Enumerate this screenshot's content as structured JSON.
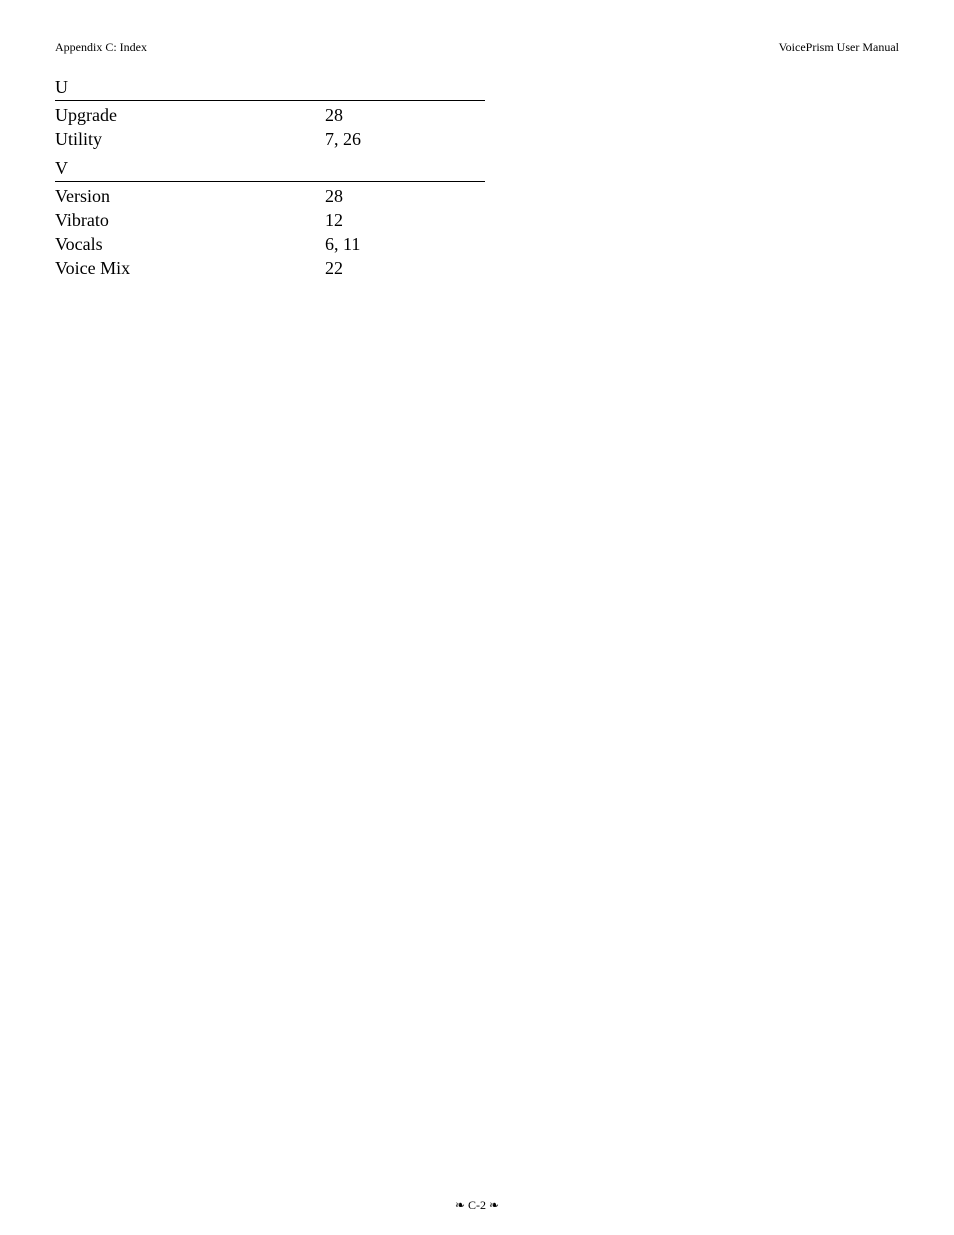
{
  "header": {
    "left": "Appendix C: Index",
    "right": "VoicePrism User Manual"
  },
  "sections": {
    "u": {
      "letter": "U",
      "upgrade": {
        "term": "Upgrade",
        "pages": "28"
      },
      "utility": {
        "term": "Utility",
        "pages": "7, 26"
      }
    },
    "v": {
      "letter": "V",
      "version": {
        "term": "Version",
        "pages": "28"
      },
      "vibrato": {
        "term": "Vibrato",
        "pages": "12"
      },
      "vocals": {
        "term": "Vocals",
        "pages": "6, 11"
      },
      "voicemix": {
        "term": "Voice Mix",
        "pages": "22"
      }
    }
  },
  "footer": {
    "ornament": "❧",
    "page": "C-2"
  }
}
